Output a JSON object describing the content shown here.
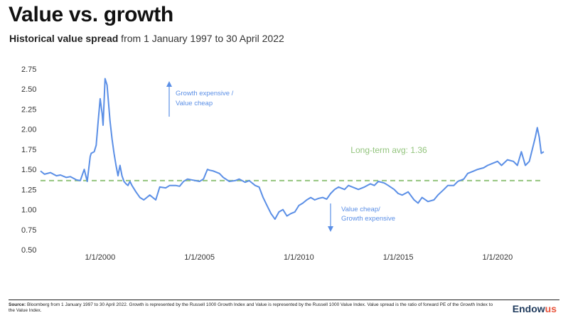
{
  "header": {
    "title": "Value vs. growth",
    "subtitle_bold": "Historical value spread",
    "subtitle_rest": " from 1 January 1997 to 30 April 2022"
  },
  "footer": {
    "source_label": "Source:",
    "source_text": " Bloomberg from 1 January 1997 to 30 April 2022. Growth is represented by the Russell 1000 Growth Index and Value is represented by the Russell 1000 Value Index. Value spread is the ratio of forward PE of the Growth Index to the Value Index.",
    "brand_main": "Endow",
    "brand_accent": "us"
  },
  "colors": {
    "line": "#5b8fe6",
    "average": "#93c47d",
    "arrow": "#5b8fe6",
    "axis_text": "#333333"
  },
  "chart_data": {
    "type": "line",
    "xlim": [
      1997.0,
      2022.33
    ],
    "ylim": [
      0.5,
      2.75
    ],
    "y_ticks": [
      "2.75",
      "2.50",
      "2.25",
      "2.00",
      "1.75",
      "1.50",
      "1.25",
      "1.00",
      "0.75",
      "0.50"
    ],
    "x_ticks": [
      {
        "label": "1/1/2000",
        "x": 2000
      },
      {
        "label": "1/1/2005",
        "x": 2005
      },
      {
        "label": "1/1/2010",
        "x": 2010
      },
      {
        "label": "1/1/2015",
        "x": 2015
      },
      {
        "label": "1/1/2020",
        "x": 2020
      }
    ],
    "grid": false,
    "average": {
      "value": 1.36,
      "label": "Long-term avg: 1.36"
    },
    "annotations": {
      "up": {
        "line1": "Growth expensive /",
        "line2": "Value cheap"
      },
      "down": {
        "line1": "Value cheap/",
        "line2": "Growth expensive"
      }
    },
    "series": [
      {
        "x": [
          1997.0,
          1997.2,
          1997.5,
          1997.8,
          1998.0,
          1998.3,
          1998.5,
          1998.8,
          1999.0,
          1999.2,
          1999.35,
          1999.5,
          1999.55,
          1999.7,
          1999.8,
          1999.9,
          2000.0,
          2000.1,
          2000.15,
          2000.25,
          2000.35,
          2000.5,
          2000.6,
          2000.7,
          2000.8,
          2000.9,
          2001.0,
          2001.1,
          2001.2,
          2001.3,
          2001.4,
          2001.5,
          2001.6,
          2001.8,
          2002.0,
          2002.2,
          2002.5,
          2002.8,
          2003.0,
          2003.3,
          2003.5,
          2003.8,
          2004.0,
          2004.2,
          2004.4,
          2004.6,
          2004.8,
          2005.0,
          2005.2,
          2005.4,
          2005.5,
          2005.7,
          2006.0,
          2006.2,
          2006.5,
          2006.8,
          2007.0,
          2007.3,
          2007.5,
          2007.8,
          2008.0,
          2008.2,
          2008.4,
          2008.6,
          2008.8,
          2009.0,
          2009.2,
          2009.4,
          2009.6,
          2009.8,
          2010.0,
          2010.2,
          2010.4,
          2010.6,
          2010.8,
          2011.0,
          2011.2,
          2011.4,
          2011.6,
          2011.8,
          2012.0,
          2012.3,
          2012.5,
          2012.8,
          2013.0,
          2013.3,
          2013.6,
          2013.8,
          2014.0,
          2014.3,
          2014.5,
          2014.8,
          2015.0,
          2015.2,
          2015.5,
          2015.8,
          2016.0,
          2016.2,
          2016.5,
          2016.8,
          2017.0,
          2017.3,
          2017.5,
          2017.8,
          2018.0,
          2018.3,
          2018.5,
          2018.8,
          2019.0,
          2019.3,
          2019.5,
          2019.8,
          2020.0,
          2020.2,
          2020.5,
          2020.8,
          2021.0,
          2021.2,
          2021.4,
          2021.6,
          2021.8,
          2021.9,
          2022.0,
          2022.1,
          2022.2,
          2022.33
        ],
        "values": [
          1.48,
          1.44,
          1.46,
          1.42,
          1.43,
          1.4,
          1.41,
          1.37,
          1.36,
          1.5,
          1.35,
          1.66,
          1.7,
          1.72,
          1.8,
          2.1,
          2.38,
          2.2,
          2.05,
          2.63,
          2.55,
          2.1,
          1.88,
          1.7,
          1.55,
          1.42,
          1.55,
          1.42,
          1.35,
          1.32,
          1.3,
          1.35,
          1.3,
          1.22,
          1.15,
          1.12,
          1.18,
          1.12,
          1.28,
          1.27,
          1.3,
          1.3,
          1.29,
          1.35,
          1.38,
          1.37,
          1.36,
          1.35,
          1.38,
          1.5,
          1.49,
          1.48,
          1.45,
          1.4,
          1.35,
          1.36,
          1.38,
          1.34,
          1.36,
          1.3,
          1.28,
          1.15,
          1.05,
          0.95,
          0.88,
          0.97,
          1.0,
          0.92,
          0.95,
          0.97,
          1.05,
          1.08,
          1.12,
          1.15,
          1.12,
          1.14,
          1.15,
          1.13,
          1.2,
          1.25,
          1.28,
          1.25,
          1.3,
          1.27,
          1.25,
          1.28,
          1.32,
          1.3,
          1.35,
          1.33,
          1.3,
          1.25,
          1.2,
          1.18,
          1.22,
          1.12,
          1.08,
          1.15,
          1.1,
          1.12,
          1.18,
          1.25,
          1.3,
          1.3,
          1.35,
          1.38,
          1.45,
          1.48,
          1.5,
          1.52,
          1.55,
          1.58,
          1.6,
          1.55,
          1.62,
          1.6,
          1.55,
          1.72,
          1.55,
          1.6,
          1.8,
          1.9,
          2.02,
          1.9,
          1.7,
          1.72
        ]
      }
    ]
  }
}
